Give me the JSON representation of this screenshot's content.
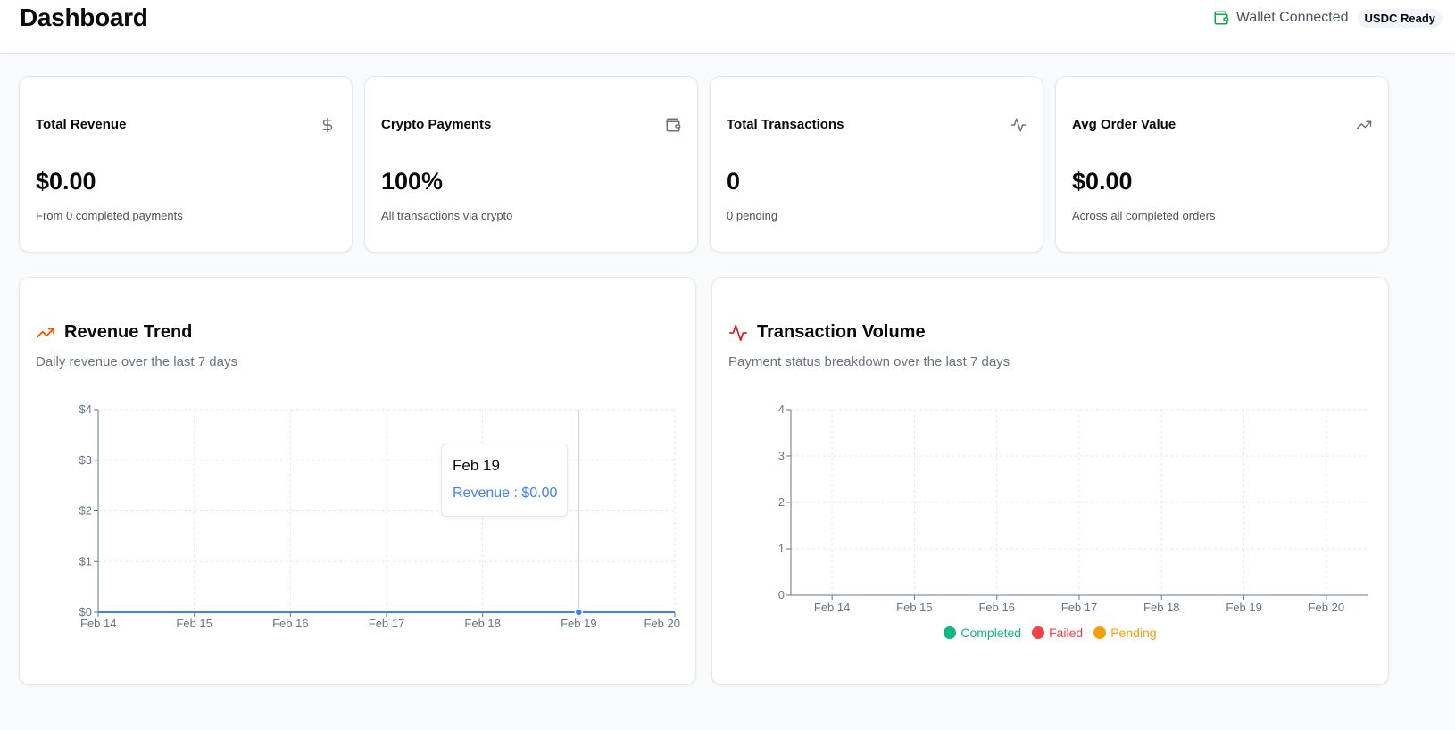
{
  "header": {
    "title": "Dashboard",
    "wallet_status": "Wallet Connected",
    "badge": "USDC Ready",
    "wallet_icon": "wallet-icon",
    "wallet_color": "#16a34a"
  },
  "stats": [
    {
      "title": "Total Revenue",
      "value": "$0.00",
      "sub": "From 0 completed payments",
      "icon": "dollar-icon"
    },
    {
      "title": "Crypto Payments",
      "value": "100%",
      "sub": "All transactions via crypto",
      "icon": "wallet-icon"
    },
    {
      "title": "Total Transactions",
      "value": "0",
      "sub": "0 pending",
      "icon": "activity-icon"
    },
    {
      "title": "Avg Order Value",
      "value": "$0.00",
      "sub": "Across all completed orders",
      "icon": "trending-up-icon"
    }
  ],
  "revenue": {
    "title": "Revenue Trend",
    "desc": "Daily revenue over the last 7 days",
    "icon": "trending-up-icon",
    "accent": "#ea580c",
    "tooltip": {
      "label": "Feb 19",
      "value": "Revenue : $0.00"
    }
  },
  "volume": {
    "title": "Transaction Volume",
    "desc": "Payment status breakdown over the last 7 days",
    "icon": "activity-icon",
    "accent": "#dc2626",
    "legend": [
      {
        "label": "Completed",
        "color": "#10b981"
      },
      {
        "label": "Failed",
        "color": "#ef4444"
      },
      {
        "label": "Pending",
        "color": "#f59e0b"
      }
    ]
  },
  "chart_data": [
    {
      "type": "line",
      "title": "Revenue Trend",
      "x": [
        "Feb 14",
        "Feb 15",
        "Feb 16",
        "Feb 17",
        "Feb 18",
        "Feb 19",
        "Feb 20"
      ],
      "yticks": [
        "$0",
        "$1",
        "$2",
        "$3",
        "$4"
      ],
      "series": [
        {
          "name": "Revenue",
          "values": [
            0,
            0,
            0,
            0,
            0,
            0,
            0
          ],
          "color": "#3b82f6"
        }
      ],
      "ylim": [
        0,
        4
      ],
      "grid": true,
      "active_index": 5
    },
    {
      "type": "bar",
      "title": "Transaction Volume",
      "categories": [
        "Feb 14",
        "Feb 15",
        "Feb 16",
        "Feb 17",
        "Feb 18",
        "Feb 19",
        "Feb 20"
      ],
      "yticks": [
        "0",
        "1",
        "2",
        "3",
        "4"
      ],
      "series": [
        {
          "name": "Completed",
          "values": [
            0,
            0,
            0,
            0,
            0,
            0,
            0
          ],
          "color": "#10b981"
        },
        {
          "name": "Failed",
          "values": [
            0,
            0,
            0,
            0,
            0,
            0,
            0
          ],
          "color": "#ef4444"
        },
        {
          "name": "Pending",
          "values": [
            0,
            0,
            0,
            0,
            0,
            0,
            0
          ],
          "color": "#f59e0b"
        }
      ],
      "ylim": [
        0,
        4
      ],
      "grid": true,
      "legend": "bottom"
    }
  ]
}
